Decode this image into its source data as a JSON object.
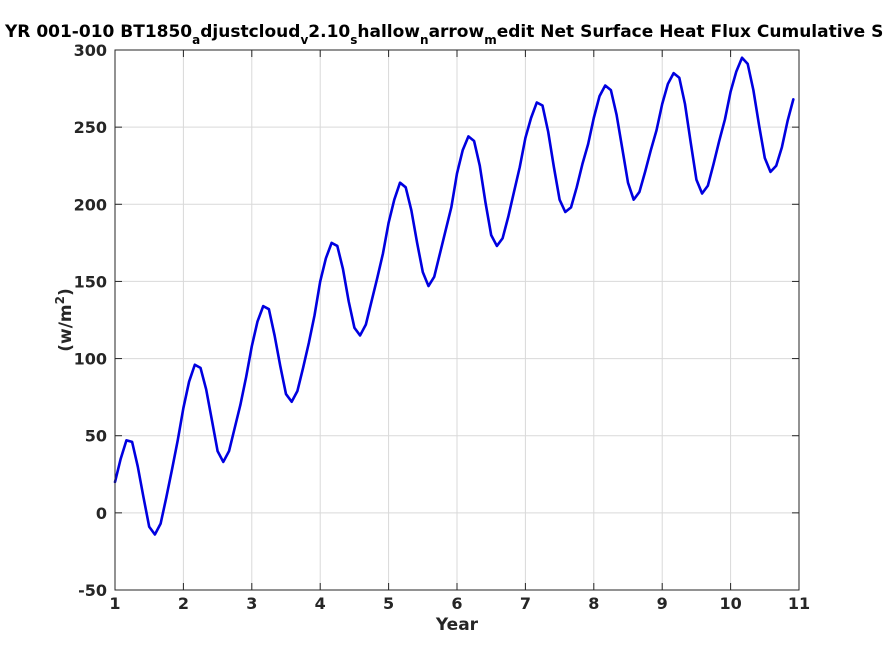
{
  "chart_data": {
    "type": "line",
    "title": {
      "segments": [
        {
          "text": "YR 001-010 BT1850",
          "sub": false
        },
        {
          "text": "a",
          "sub": true
        },
        {
          "text": "djustcloud",
          "sub": false
        },
        {
          "text": "v",
          "sub": true
        },
        {
          "text": "2.10",
          "sub": false
        },
        {
          "text": "s",
          "sub": true
        },
        {
          "text": "hallow",
          "sub": false
        },
        {
          "text": "n",
          "sub": true
        },
        {
          "text": "arrow",
          "sub": false
        },
        {
          "text": "m",
          "sub": true
        },
        {
          "text": "edit Net Surface Heat Flux  Cumulative Sum",
          "sub": false
        }
      ]
    },
    "xlabel": "Year",
    "ylabel": {
      "base": "(w/m",
      "sup": "2",
      "end": ")"
    },
    "xlim": [
      1,
      11
    ],
    "ylim": [
      -50,
      300
    ],
    "xticks": [
      1,
      2,
      3,
      4,
      5,
      6,
      7,
      8,
      9,
      10,
      11
    ],
    "yticks": [
      -50,
      0,
      50,
      100,
      150,
      200,
      250,
      300
    ],
    "grid": true,
    "series": [
      {
        "color": "#0000e0",
        "points": [
          [
            1.0,
            20
          ],
          [
            1.083,
            35
          ],
          [
            1.167,
            47
          ],
          [
            1.25,
            46
          ],
          [
            1.333,
            30
          ],
          [
            1.417,
            10
          ],
          [
            1.5,
            -9
          ],
          [
            1.583,
            -14
          ],
          [
            1.667,
            -7
          ],
          [
            1.75,
            10
          ],
          [
            1.833,
            28
          ],
          [
            1.917,
            47
          ],
          [
            2.0,
            68
          ],
          [
            2.083,
            85
          ],
          [
            2.167,
            96
          ],
          [
            2.25,
            94
          ],
          [
            2.333,
            80
          ],
          [
            2.417,
            60
          ],
          [
            2.5,
            40
          ],
          [
            2.583,
            33
          ],
          [
            2.667,
            40
          ],
          [
            2.75,
            55
          ],
          [
            2.833,
            70
          ],
          [
            2.917,
            88
          ],
          [
            3.0,
            108
          ],
          [
            3.083,
            124
          ],
          [
            3.167,
            134
          ],
          [
            3.25,
            132
          ],
          [
            3.333,
            115
          ],
          [
            3.417,
            95
          ],
          [
            3.5,
            77
          ],
          [
            3.583,
            72
          ],
          [
            3.667,
            79
          ],
          [
            3.75,
            94
          ],
          [
            3.833,
            110
          ],
          [
            3.917,
            128
          ],
          [
            4.0,
            150
          ],
          [
            4.083,
            165
          ],
          [
            4.167,
            175
          ],
          [
            4.25,
            173
          ],
          [
            4.333,
            158
          ],
          [
            4.417,
            137
          ],
          [
            4.5,
            120
          ],
          [
            4.583,
            115
          ],
          [
            4.667,
            122
          ],
          [
            4.75,
            137
          ],
          [
            4.833,
            152
          ],
          [
            4.917,
            168
          ],
          [
            5.0,
            188
          ],
          [
            5.083,
            203
          ],
          [
            5.167,
            214
          ],
          [
            5.25,
            211
          ],
          [
            5.333,
            196
          ],
          [
            5.417,
            175
          ],
          [
            5.5,
            156
          ],
          [
            5.583,
            147
          ],
          [
            5.667,
            153
          ],
          [
            5.75,
            168
          ],
          [
            5.833,
            183
          ],
          [
            5.917,
            198
          ],
          [
            6.0,
            220
          ],
          [
            6.083,
            235
          ],
          [
            6.167,
            244
          ],
          [
            6.25,
            241
          ],
          [
            6.333,
            225
          ],
          [
            6.417,
            201
          ],
          [
            6.5,
            180
          ],
          [
            6.583,
            173
          ],
          [
            6.667,
            178
          ],
          [
            6.75,
            192
          ],
          [
            6.833,
            208
          ],
          [
            6.917,
            224
          ],
          [
            7.0,
            243
          ],
          [
            7.083,
            256
          ],
          [
            7.167,
            266
          ],
          [
            7.25,
            264
          ],
          [
            7.333,
            247
          ],
          [
            7.417,
            224
          ],
          [
            7.5,
            203
          ],
          [
            7.583,
            195
          ],
          [
            7.667,
            198
          ],
          [
            7.75,
            211
          ],
          [
            7.833,
            226
          ],
          [
            7.917,
            239
          ],
          [
            8.0,
            256
          ],
          [
            8.083,
            270
          ],
          [
            8.167,
            277
          ],
          [
            8.25,
            274
          ],
          [
            8.333,
            258
          ],
          [
            8.417,
            236
          ],
          [
            8.5,
            214
          ],
          [
            8.583,
            203
          ],
          [
            8.667,
            208
          ],
          [
            8.75,
            221
          ],
          [
            8.833,
            235
          ],
          [
            8.917,
            248
          ],
          [
            9.0,
            265
          ],
          [
            9.083,
            278
          ],
          [
            9.167,
            285
          ],
          [
            9.25,
            282
          ],
          [
            9.333,
            265
          ],
          [
            9.417,
            240
          ],
          [
            9.5,
            216
          ],
          [
            9.583,
            207
          ],
          [
            9.667,
            212
          ],
          [
            9.75,
            226
          ],
          [
            9.833,
            241
          ],
          [
            9.917,
            255
          ],
          [
            10.0,
            273
          ],
          [
            10.083,
            286
          ],
          [
            10.167,
            295
          ],
          [
            10.25,
            291
          ],
          [
            10.333,
            274
          ],
          [
            10.417,
            251
          ],
          [
            10.5,
            230
          ],
          [
            10.583,
            221
          ],
          [
            10.667,
            225
          ],
          [
            10.75,
            237
          ],
          [
            10.833,
            254
          ],
          [
            10.917,
            268
          ]
        ]
      }
    ]
  }
}
